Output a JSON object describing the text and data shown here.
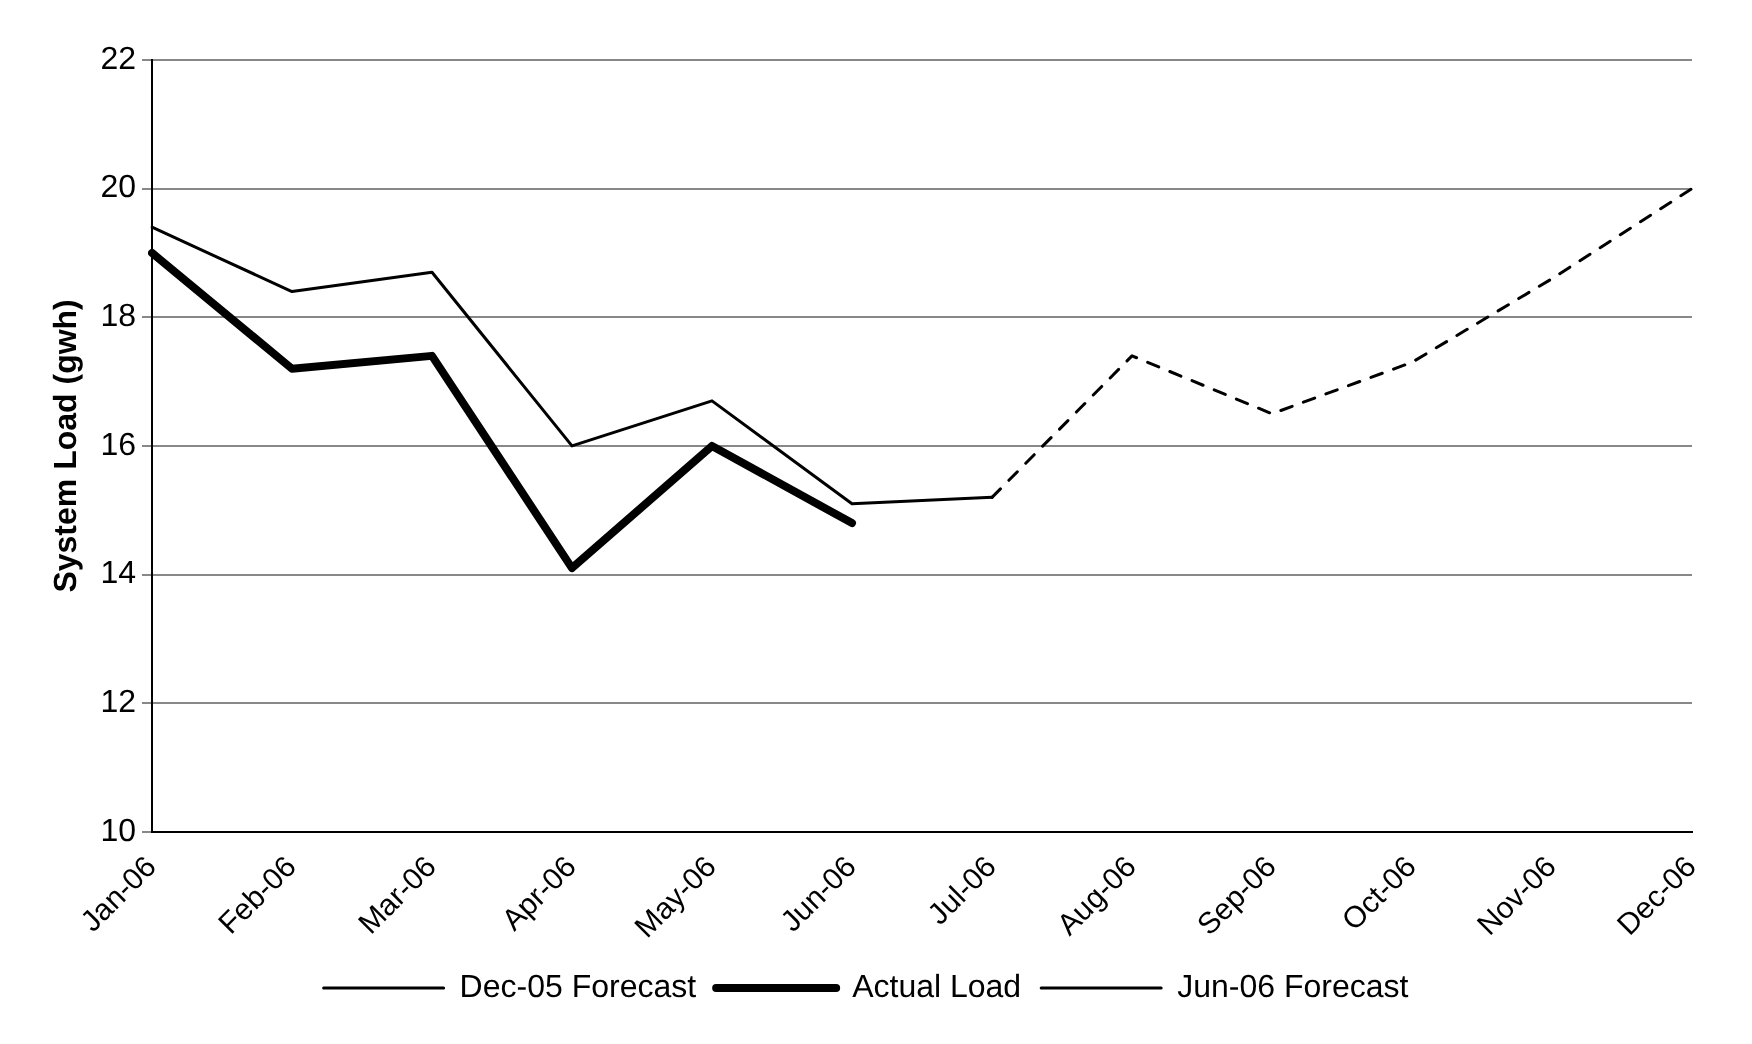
{
  "chart_data": {
    "type": "line",
    "ylabel": "System Load (gwh)",
    "categories": [
      "Jan-06",
      "Feb-06",
      "Mar-06",
      "Apr-06",
      "May-06",
      "Jun-06",
      "Jul-06",
      "Aug-06",
      "Sep-06",
      "Oct-06",
      "Nov-06",
      "Dec-06"
    ],
    "series": [
      {
        "name": "Dec-05 Forecast",
        "color": "#000000",
        "line_style": "solid",
        "values": [
          19.4,
          18.4,
          18.7,
          16.0,
          16.7,
          15.1,
          15.2,
          null,
          null,
          null,
          null,
          null
        ]
      },
      {
        "name": "Actual Load",
        "color": "#000000",
        "line_style": "solid",
        "values": [
          19.0,
          17.2,
          17.4,
          14.1,
          16.0,
          14.8,
          null,
          null,
          null,
          null,
          null,
          null
        ]
      },
      {
        "name": "Jun-06 Forecast",
        "color": "#000000",
        "line_style": "dashed",
        "values": [
          null,
          null,
          null,
          null,
          null,
          null,
          15.2,
          17.4,
          16.5,
          17.3,
          18.6,
          20.0
        ]
      }
    ],
    "ylim": [
      10,
      22
    ],
    "yticks": [
      10,
      12,
      14,
      16,
      18,
      20,
      22
    ],
    "grid": "y",
    "legend": "bottom",
    "marker": "none"
  }
}
